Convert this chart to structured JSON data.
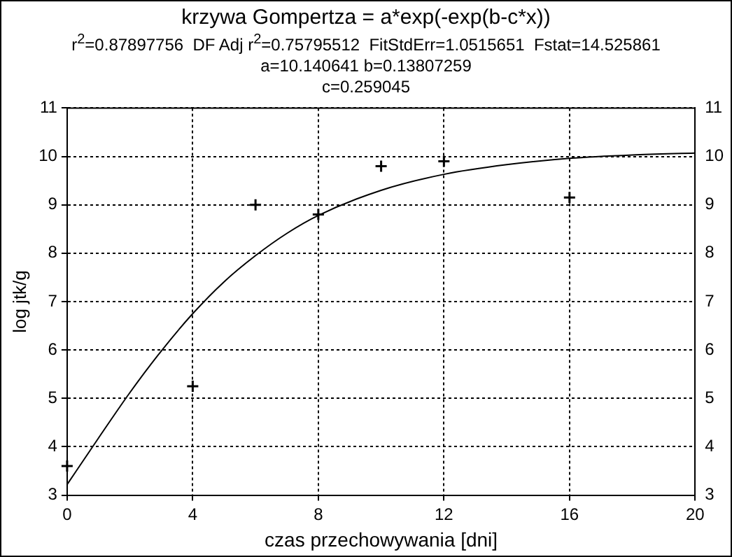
{
  "chart_data": {
    "type": "scatter",
    "title": "krzywa Gompertza = a*exp(-exp(b-c*x))",
    "subtitle": "r$^{2}$=0.87897756  DF Adj r$^{2}$=0.75795512  FitStdErr=1.0515651  Fstat=14.525861",
    "annotations": [
      "a=10.140641 b=0.13807259",
      "c=0.259045"
    ],
    "xlabel": "czas przechowywania [dni]",
    "ylabel": "log jtk/g",
    "series": [
      {
        "color": "#000000",
        "marker": "cross",
        "x": [
          0,
          4,
          6,
          8,
          10,
          12,
          16
        ],
        "values": [
          3.6,
          5.25,
          9.0,
          8.8,
          9.8,
          9.9,
          9.15
        ]
      },
      {
        "type": "line",
        "color": "#000000",
        "marker": "none",
        "x": [
          0,
          1,
          2,
          3,
          4,
          5,
          6,
          7,
          8,
          10,
          12,
          14,
          16,
          18,
          20
        ],
        "values": [
          3.22,
          4.18,
          5.12,
          5.98,
          6.75,
          7.41,
          7.95,
          8.41,
          8.78,
          9.3,
          9.63,
          9.83,
          9.96,
          10.03,
          10.07
        ]
      }
    ],
    "xlim": [
      0,
      20
    ],
    "xticks": [
      0,
      4,
      8,
      12,
      16,
      20
    ],
    "ylim": [
      3,
      11
    ],
    "yticks": [
      3,
      4,
      5,
      6,
      7,
      8,
      9,
      10,
      11
    ],
    "y2lim": [
      3,
      11
    ],
    "y2ticks": [
      3,
      4,
      5,
      6,
      7,
      8,
      9,
      10,
      11
    ],
    "grid": true,
    "legend": false,
    "line_style": "solid"
  }
}
